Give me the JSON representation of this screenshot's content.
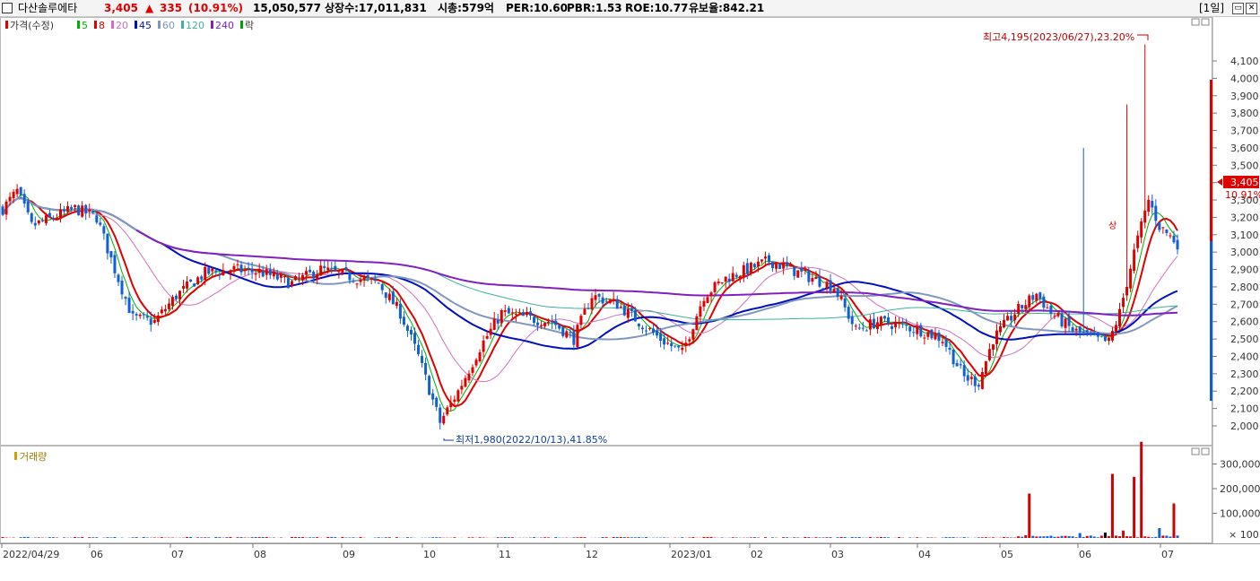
{
  "header": {
    "name": "다산솔루에타",
    "price": "3,405",
    "change_arrow": "▲",
    "change": "335",
    "change_pct": "(10.91%)",
    "volume": "15,050,577",
    "shares": "상장수:17,011,831",
    "mktcap": "시총:579억",
    "per": "PER:10.60",
    "pbr": "PBR:1.53",
    "roe": "ROE:10.77",
    "float": "유보율:842.21",
    "period": "[1일]"
  },
  "legend": {
    "price_label": "가격(수정)",
    "ma": [
      {
        "label": "5",
        "color": "#00b000"
      },
      {
        "label": "8",
        "color": "#e00000"
      },
      {
        "label": "20",
        "color": "#d070c0"
      },
      {
        "label": "45",
        "color": "#0010c0"
      },
      {
        "label": "60",
        "color": "#8098c0"
      },
      {
        "label": "120",
        "color": "#40b0a0"
      },
      {
        "label": "240",
        "color": "#8020c0"
      }
    ],
    "extra_label": "락",
    "volume_label": "거래량"
  },
  "annotations": {
    "high": "최고4,195(2023/06/27),23.20%",
    "low": "최저1,980(2022/10/13),41.85%",
    "current_price": "3,405",
    "current_pct": "10.91%",
    "small_marker": "상"
  },
  "chart_data": {
    "type": "candlestick",
    "price_axis": {
      "ticks": [
        2000,
        2100,
        2200,
        2300,
        2400,
        2500,
        2600,
        2700,
        2800,
        2900,
        3000,
        3100,
        3200,
        3300,
        3400,
        3500,
        3600,
        3700,
        3800,
        3900,
        4000,
        4100
      ],
      "labels": [
        "2,000",
        "2,100",
        "2,200",
        "2,300",
        "2,400",
        "2,500",
        "2,600",
        "2,700",
        "2,800",
        "2,900",
        "3,000",
        "3,100",
        "3,200",
        "3,300",
        "3,400",
        "3,500",
        "3,600",
        "3,700",
        "3,800",
        "3,900",
        "4,000",
        "4,100"
      ]
    },
    "volume_axis": {
      "ticks": [
        100000,
        200000,
        300000
      ],
      "labels": [
        "100,000",
        "200,000",
        "300,000"
      ],
      "unit": "× 100"
    },
    "x_labels": [
      "2022/04/29",
      "06",
      "07",
      "08",
      "09",
      "10",
      "11",
      "12",
      "2023/01",
      "02",
      "03",
      "04",
      "05",
      "06",
      "07"
    ],
    "high": {
      "value": 4195,
      "date": "2023/06/27"
    },
    "low": {
      "value": 1980,
      "date": "2022/10/13"
    },
    "last": {
      "value": 3405,
      "change": 335,
      "change_pct": 10.91
    },
    "ma_periods": [
      5,
      8,
      20,
      45,
      60,
      120,
      240
    ]
  }
}
